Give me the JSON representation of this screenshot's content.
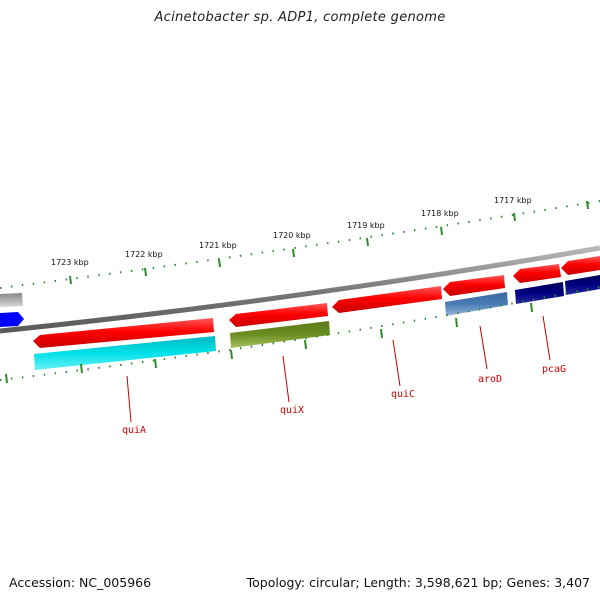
{
  "title": "Acinetobacter sp. ADP1, complete genome",
  "footer": {
    "accession": "Accession: NC_005966",
    "topology": "Topology: circular; Length: 3,598,621 bp; Genes: 3,407"
  },
  "map": {
    "ruler_labels": [
      "1723 kbp",
      "1722 kbp",
      "1721 kbp",
      "1720 kbp",
      "1719 kbp",
      "1718 kbp",
      "1717 kbp"
    ],
    "gene_labels": [
      "quiA",
      "quiX",
      "quiC",
      "aroD",
      "pcaG"
    ],
    "colors": {
      "backbone": "#8a8a8a",
      "tick": "#2e8b2e",
      "forward_gene": "#ff0000",
      "quiA": "#00d0d8",
      "quiX": "#6b8e23",
      "aroD": "#4a7bb5",
      "pcaG": "#000080",
      "edge_blue": "#0000ff",
      "edge_gray": "#a8a8a8",
      "label": "#cc0000"
    }
  }
}
